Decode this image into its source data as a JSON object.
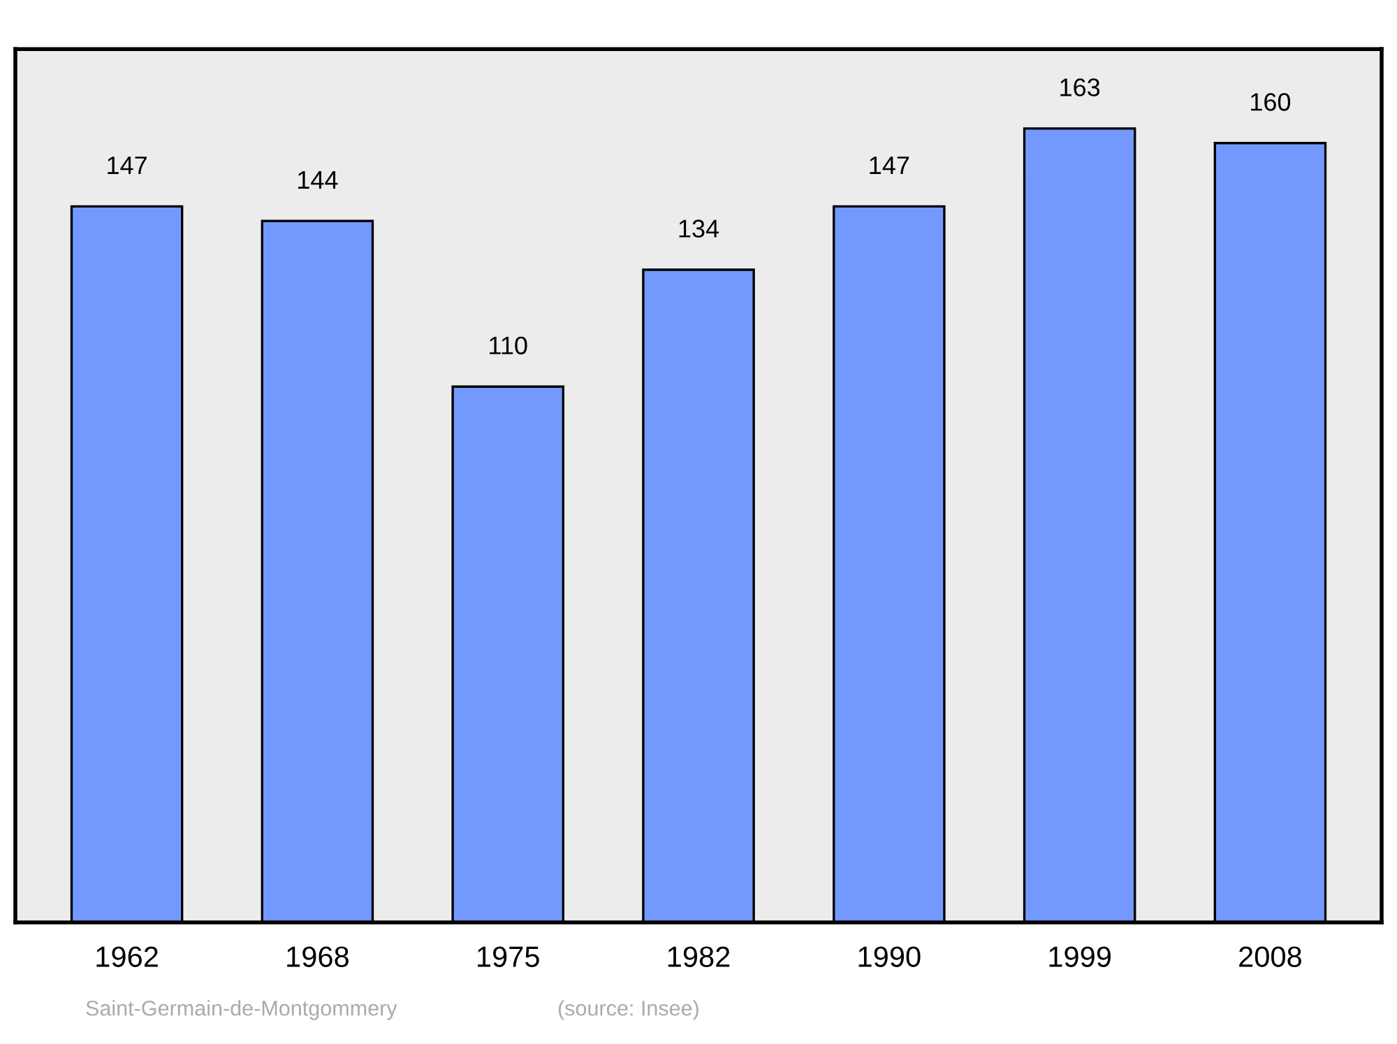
{
  "chart_data": {
    "type": "bar",
    "categories": [
      "1962",
      "1968",
      "1975",
      "1982",
      "1990",
      "1999",
      "2008"
    ],
    "values": [
      147,
      144,
      110,
      134,
      147,
      163,
      160
    ],
    "color": "#7399ff",
    "data_labels": true,
    "grid": false,
    "legend": false,
    "annotations": [
      "Saint-Germain-de-Montgommery",
      "(source: Insee)"
    ]
  }
}
